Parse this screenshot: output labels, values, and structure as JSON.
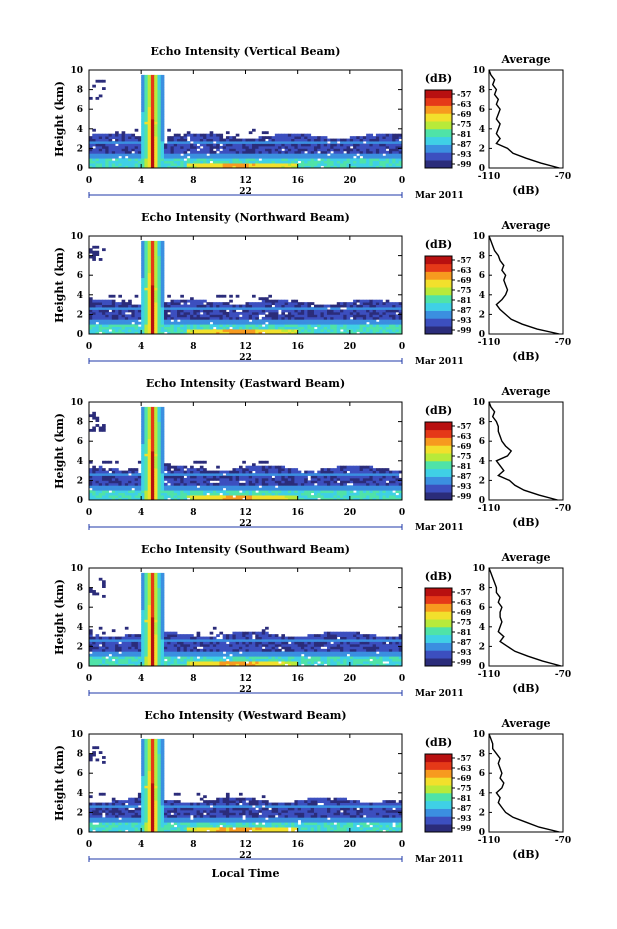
{
  "chart_data": [
    {
      "type": "heatmap",
      "title": "Echo Intensity (Vertical Beam)",
      "ylabel": "Height (km)",
      "xlim": [
        0,
        24
      ],
      "ylim": [
        0,
        10
      ],
      "x_ticks": [
        "0",
        "4",
        "8",
        "12",
        "16",
        "20",
        "0"
      ],
      "y_ticks": [
        "0",
        "2",
        "4",
        "6",
        "8",
        "10"
      ],
      "date_day": "22",
      "date_month": "Mar 2011",
      "colorbar": {
        "unit": "(dB)",
        "ticks": [
          "-57",
          "-63",
          "-69",
          "-75",
          "-81",
          "-87",
          "-93",
          "-99"
        ]
      },
      "average": {
        "title": "Average",
        "xlabel": "(dB)",
        "x_ticks": [
          "-110",
          "-70"
        ],
        "xlim": [
          -110,
          -70
        ],
        "profile": [
          [
            0,
            -72
          ],
          [
            0.5,
            -82
          ],
          [
            1,
            -90
          ],
          [
            1.5,
            -97
          ],
          [
            2,
            -100
          ],
          [
            2.5,
            -106
          ],
          [
            3,
            -104
          ],
          [
            3.5,
            -106
          ],
          [
            4,
            -105
          ],
          [
            4.5,
            -104
          ],
          [
            5,
            -106
          ],
          [
            5.5,
            -105
          ],
          [
            6,
            -104
          ],
          [
            6.5,
            -106
          ],
          [
            7,
            -105
          ],
          [
            7.5,
            -107
          ],
          [
            8,
            -106
          ],
          [
            8.5,
            -108
          ],
          [
            9,
            -107
          ],
          [
            9.5,
            -109
          ],
          [
            10,
            -110
          ]
        ]
      }
    },
    {
      "type": "heatmap",
      "title": "Echo Intensity (Northward Beam)",
      "ylabel": "Height (km)",
      "xlim": [
        0,
        24
      ],
      "ylim": [
        0,
        10
      ],
      "x_ticks": [
        "0",
        "4",
        "8",
        "12",
        "16",
        "20",
        "0"
      ],
      "y_ticks": [
        "0",
        "2",
        "4",
        "6",
        "8",
        "10"
      ],
      "date_day": "22",
      "date_month": "Mar 2011",
      "colorbar": {
        "unit": "(dB)",
        "ticks": [
          "-57",
          "-63",
          "-69",
          "-75",
          "-81",
          "-87",
          "-93",
          "-99"
        ]
      },
      "average": {
        "title": "Average",
        "xlabel": "(dB)",
        "x_ticks": [
          "-110",
          "-70"
        ],
        "xlim": [
          -110,
          -70
        ],
        "profile": [
          [
            0,
            -72
          ],
          [
            0.5,
            -84
          ],
          [
            1,
            -92
          ],
          [
            1.5,
            -98
          ],
          [
            2,
            -101
          ],
          [
            2.5,
            -104
          ],
          [
            3,
            -106
          ],
          [
            3.5,
            -103
          ],
          [
            4,
            -101
          ],
          [
            4.5,
            -100
          ],
          [
            5,
            -101
          ],
          [
            5.5,
            -102
          ],
          [
            6,
            -101
          ],
          [
            6.5,
            -103
          ],
          [
            7,
            -102
          ],
          [
            7.5,
            -104
          ],
          [
            8,
            -105
          ],
          [
            8.5,
            -107
          ],
          [
            9,
            -108
          ],
          [
            9.5,
            -109
          ],
          [
            10,
            -110
          ]
        ]
      }
    },
    {
      "type": "heatmap",
      "title": "Echo Intensity (Eastward Beam)",
      "ylabel": "Height (km)",
      "xlim": [
        0,
        24
      ],
      "ylim": [
        0,
        10
      ],
      "x_ticks": [
        "0",
        "4",
        "8",
        "12",
        "16",
        "20",
        "0"
      ],
      "y_ticks": [
        "0",
        "2",
        "4",
        "6",
        "8",
        "10"
      ],
      "date_day": "22",
      "date_month": "Mar 2011",
      "colorbar": {
        "unit": "(dB)",
        "ticks": [
          "-57",
          "-63",
          "-69",
          "-75",
          "-81",
          "-87",
          "-93",
          "-99"
        ]
      },
      "average": {
        "title": "Average",
        "xlabel": "(dB)",
        "x_ticks": [
          "-110",
          "-70"
        ],
        "xlim": [
          -110,
          -70
        ],
        "profile": [
          [
            0,
            -73
          ],
          [
            0.5,
            -83
          ],
          [
            1,
            -91
          ],
          [
            1.5,
            -96
          ],
          [
            2,
            -99
          ],
          [
            2.5,
            -105
          ],
          [
            3,
            -102
          ],
          [
            3.5,
            -104
          ],
          [
            4,
            -106
          ],
          [
            4.5,
            -100
          ],
          [
            5,
            -98
          ],
          [
            5.5,
            -101
          ],
          [
            6,
            -103
          ],
          [
            6.5,
            -104
          ],
          [
            7,
            -105
          ],
          [
            7.5,
            -105
          ],
          [
            8,
            -106
          ],
          [
            8.5,
            -108
          ],
          [
            9,
            -107
          ],
          [
            9.5,
            -109
          ],
          [
            10,
            -110
          ]
        ]
      }
    },
    {
      "type": "heatmap",
      "title": "Echo Intensity (Southward Beam)",
      "ylabel": "Height (km)",
      "xlim": [
        0,
        24
      ],
      "ylim": [
        0,
        10
      ],
      "x_ticks": [
        "0",
        "4",
        "8",
        "12",
        "16",
        "20",
        "0"
      ],
      "y_ticks": [
        "0",
        "2",
        "4",
        "6",
        "8",
        "10"
      ],
      "date_day": "22",
      "date_month": "Mar 2011",
      "colorbar": {
        "unit": "(dB)",
        "ticks": [
          "-57",
          "-63",
          "-69",
          "-75",
          "-81",
          "-87",
          "-93",
          "-99"
        ]
      },
      "average": {
        "title": "Average",
        "xlabel": "(dB)",
        "x_ticks": [
          "-110",
          "-70"
        ],
        "xlim": [
          -110,
          -70
        ],
        "profile": [
          [
            0,
            -71
          ],
          [
            0.5,
            -81
          ],
          [
            1,
            -89
          ],
          [
            1.5,
            -96
          ],
          [
            2,
            -100
          ],
          [
            2.5,
            -104
          ],
          [
            3,
            -102
          ],
          [
            3.5,
            -105
          ],
          [
            4,
            -104
          ],
          [
            4.5,
            -103
          ],
          [
            5,
            -104
          ],
          [
            5.5,
            -104
          ],
          [
            6,
            -103
          ],
          [
            6.5,
            -105
          ],
          [
            7,
            -104
          ],
          [
            7.5,
            -106
          ],
          [
            8,
            -106
          ],
          [
            8.5,
            -107
          ],
          [
            9,
            -108
          ],
          [
            9.5,
            -109
          ],
          [
            10,
            -110
          ]
        ]
      }
    },
    {
      "type": "heatmap",
      "title": "Echo Intensity (Westward Beam)",
      "ylabel": "Height (km)",
      "xlabel": "Local Time",
      "xlim": [
        0,
        24
      ],
      "ylim": [
        0,
        10
      ],
      "x_ticks": [
        "0",
        "4",
        "8",
        "12",
        "16",
        "20",
        "0"
      ],
      "y_ticks": [
        "0",
        "2",
        "4",
        "6",
        "8",
        "10"
      ],
      "date_day": "22",
      "date_month": "Mar 2011",
      "colorbar": {
        "unit": "(dB)",
        "ticks": [
          "-57",
          "-63",
          "-69",
          "-75",
          "-81",
          "-87",
          "-93",
          "-99"
        ]
      },
      "average": {
        "title": "Average",
        "xlabel": "(dB)",
        "x_ticks": [
          "-110",
          "-70"
        ],
        "xlim": [
          -110,
          -70
        ],
        "profile": [
          [
            0,
            -72
          ],
          [
            0.5,
            -83
          ],
          [
            1,
            -90
          ],
          [
            1.5,
            -97
          ],
          [
            2,
            -101
          ],
          [
            2.5,
            -103
          ],
          [
            3,
            -105
          ],
          [
            3.5,
            -104
          ],
          [
            4,
            -106
          ],
          [
            4.5,
            -103
          ],
          [
            5,
            -102
          ],
          [
            5.5,
            -104
          ],
          [
            6,
            -103
          ],
          [
            6.5,
            -104
          ],
          [
            7,
            -105
          ],
          [
            7.5,
            -104
          ],
          [
            8,
            -106
          ],
          [
            8.5,
            -108
          ],
          [
            9,
            -108
          ],
          [
            9.5,
            -109
          ],
          [
            10,
            -110
          ]
        ]
      }
    }
  ],
  "colors": {
    "scale": [
      "#2b2c7a",
      "#3c4fbf",
      "#3b8fe0",
      "#3fd0e6",
      "#4fe3a8",
      "#b8ea3a",
      "#f2e02c",
      "#f79a1f",
      "#e53918",
      "#b81010"
    ],
    "axis": "#000000",
    "date_bar": "#1f3aa8"
  }
}
